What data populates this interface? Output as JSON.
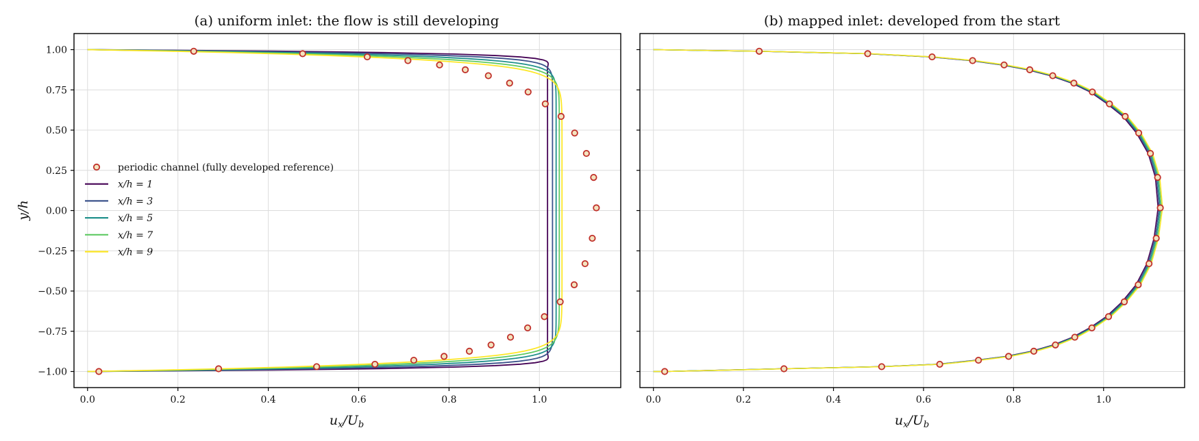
{
  "figure": {
    "panels": [
      {
        "id": "a",
        "title": "(a) uniform inlet: the flow is still developing",
        "xlabel": "u_x/U_b",
        "ylabel": "y/h",
        "show_y_tick_labels": true,
        "legend": {
          "placement": "center-left",
          "entries": [
            {
              "label": "periodic channel (fully developed reference)",
              "kind": "marker"
            },
            {
              "label": "x/h = 1",
              "kind": "line",
              "series": 0
            },
            {
              "label": "x/h = 3",
              "kind": "line",
              "series": 1
            },
            {
              "label": "x/h = 5",
              "kind": "line",
              "series": 2
            },
            {
              "label": "x/h = 7",
              "kind": "line",
              "series": 3
            },
            {
              "label": "x/h = 9",
              "kind": "line",
              "series": 4
            }
          ]
        }
      },
      {
        "id": "b",
        "title": "(b) mapped inlet: developed from the start",
        "xlabel": "u_x/U_b",
        "ylabel": "",
        "show_y_tick_labels": false,
        "legend": null
      }
    ],
    "x_ticks": [
      "0.0",
      "0.2",
      "0.4",
      "0.6",
      "0.8",
      "1.0"
    ],
    "y_ticks": [
      "−1.00",
      "−0.75",
      "−0.50",
      "−0.25",
      "0.00",
      "0.25",
      "0.50",
      "0.75",
      "1.00"
    ]
  },
  "chart_data": [
    {
      "type": "line",
      "title": "(a) uniform inlet: the flow is still developing",
      "xlabel": "u_x/U_b",
      "ylabel": "y/h",
      "xlim": [
        -0.03,
        1.18
      ],
      "ylim": [
        -1.1,
        1.1
      ],
      "x_ticks": [
        0.0,
        0.2,
        0.4,
        0.6,
        0.8,
        1.0
      ],
      "y_ticks": [
        -1.0,
        -0.75,
        -0.5,
        -0.25,
        0.0,
        0.25,
        0.5,
        0.75,
        1.0
      ],
      "grid": true,
      "legend_position": "center-left",
      "reference": {
        "name": "periodic channel (fully developed reference)",
        "marker": "open-circle",
        "color": "#c0302a",
        "face_color": "#f3e3bf",
        "x": [
          0.025,
          0.29,
          0.507,
          0.636,
          0.722,
          0.789,
          0.845,
          0.893,
          0.936,
          0.974,
          1.011,
          1.046,
          1.077,
          1.101,
          1.117,
          1.126,
          1.12,
          1.104,
          1.078,
          1.048,
          1.013,
          0.975,
          0.934,
          0.887,
          0.836,
          0.779,
          0.709,
          0.619,
          0.476,
          0.235
        ],
        "y": [
          -1.0,
          -0.983,
          -0.97,
          -0.955,
          -0.93,
          -0.906,
          -0.874,
          -0.835,
          -0.787,
          -0.729,
          -0.659,
          -0.567,
          -0.461,
          -0.33,
          -0.172,
          0.017,
          0.206,
          0.355,
          0.482,
          0.585,
          0.663,
          0.737,
          0.792,
          0.838,
          0.875,
          0.905,
          0.932,
          0.955,
          0.975,
          0.99
        ]
      },
      "series": [
        {
          "name": "x/h = 1",
          "color": "#440154",
          "core_velocity": 1.018,
          "wall_velocity": 1.04,
          "profile_sharpness": 56
        },
        {
          "name": "x/h = 3",
          "color": "#3b528b",
          "core_velocity": 1.029,
          "wall_velocity": 1.037,
          "profile_sharpness": 40
        },
        {
          "name": "x/h = 5",
          "color": "#21918c",
          "core_velocity": 1.037,
          "wall_velocity": 1.035,
          "profile_sharpness": 30
        },
        {
          "name": "x/h = 7",
          "color": "#5ec962",
          "core_velocity": 1.044,
          "wall_velocity": 1.033,
          "profile_sharpness": 24
        },
        {
          "name": "x/h = 9",
          "color": "#fde725",
          "core_velocity": 1.05,
          "wall_velocity": 1.03,
          "profile_sharpness": 20
        }
      ]
    },
    {
      "type": "line",
      "title": "(b) mapped inlet: developed from the start",
      "xlabel": "u_x/U_b",
      "ylabel": "",
      "xlim": [
        -0.03,
        1.18
      ],
      "ylim": [
        -1.1,
        1.1
      ],
      "x_ticks": [
        0.0,
        0.2,
        0.4,
        0.6,
        0.8,
        1.0
      ],
      "y_ticks": [
        -1.0,
        -0.75,
        -0.5,
        -0.25,
        0.0,
        0.25,
        0.5,
        0.75,
        1.0
      ],
      "grid": true,
      "reference": {
        "name": "periodic channel (fully developed reference)",
        "marker": "open-circle",
        "color": "#c0302a",
        "face_color": "#f3e3bf",
        "x": [
          0.025,
          0.29,
          0.507,
          0.636,
          0.722,
          0.789,
          0.845,
          0.893,
          0.936,
          0.974,
          1.011,
          1.046,
          1.077,
          1.101,
          1.117,
          1.126,
          1.12,
          1.104,
          1.078,
          1.048,
          1.013,
          0.975,
          0.934,
          0.887,
          0.836,
          0.779,
          0.709,
          0.619,
          0.476,
          0.235
        ],
        "y": [
          -1.0,
          -0.983,
          -0.97,
          -0.955,
          -0.93,
          -0.906,
          -0.874,
          -0.835,
          -0.787,
          -0.729,
          -0.659,
          -0.567,
          -0.461,
          -0.33,
          -0.172,
          0.017,
          0.206,
          0.355,
          0.482,
          0.585,
          0.663,
          0.737,
          0.792,
          0.838,
          0.875,
          0.905,
          0.932,
          0.955,
          0.975,
          0.99
        ]
      },
      "series": [
        {
          "name": "x/h = 1",
          "color": "#440154"
        },
        {
          "name": "x/h = 3",
          "color": "#3b528b"
        },
        {
          "name": "x/h = 5",
          "color": "#21918c"
        },
        {
          "name": "x/h = 7",
          "color": "#5ec962"
        },
        {
          "name": "x/h = 9",
          "color": "#fde725"
        }
      ],
      "series_follow_reference": true
    }
  ]
}
